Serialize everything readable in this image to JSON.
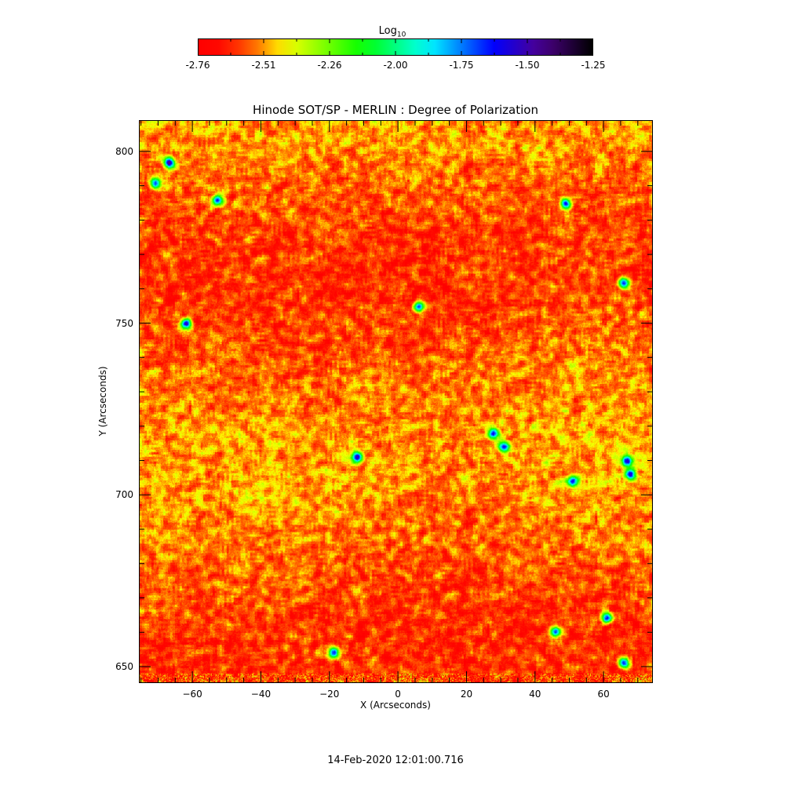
{
  "chart_data": {
    "type": "heatmap",
    "title": "Hinode SOT/SP - MERLIN : Degree of Polarization",
    "xlabel": "X (Arcseconds)",
    "ylabel": "Y (Arcseconds)",
    "xlim": [
      -75.6,
      74.4
    ],
    "ylim": [
      645.2,
      809.1
    ],
    "xticks": [
      -60,
      -40,
      -20,
      0,
      20,
      40,
      60
    ],
    "yticks": [
      650,
      700,
      750,
      800
    ],
    "colorbar": {
      "label_base": "Log",
      "label_sub": "10",
      "range": [
        -2.76,
        -1.25
      ],
      "ticks": [
        "-2.76",
        "-2.51",
        "-2.26",
        "-2.00",
        "-1.75",
        "-1.50",
        "-1.25"
      ],
      "colormap": [
        "#ff0000",
        "#ff3000",
        "#ff9900",
        "#ffff00",
        "#00ff00",
        "#00ffff",
        "#0000ff",
        "#400070",
        "#000000"
      ],
      "position": "top"
    },
    "typical_value_range": [
      -2.65,
      -2.35
    ],
    "strong_polarization_patches": [
      {
        "x": -67,
        "y": 797
      },
      {
        "x": -71,
        "y": 791
      },
      {
        "x": -62,
        "y": 750
      },
      {
        "x": 6,
        "y": 755
      },
      {
        "x": 31,
        "y": 714
      },
      {
        "x": 28,
        "y": 718
      },
      {
        "x": 51,
        "y": 704
      },
      {
        "x": 67,
        "y": 710
      },
      {
        "x": 68,
        "y": 706
      },
      {
        "x": 46,
        "y": 660
      },
      {
        "x": 61,
        "y": 664
      },
      {
        "x": 66,
        "y": 651
      },
      {
        "x": -19,
        "y": 654
      },
      {
        "x": -12,
        "y": 711
      },
      {
        "x": 49,
        "y": 785
      },
      {
        "x": 66,
        "y": 762
      },
      {
        "x": -53,
        "y": 786
      }
    ],
    "footer_date": "14-Feb-2020 12:01:00.716"
  }
}
